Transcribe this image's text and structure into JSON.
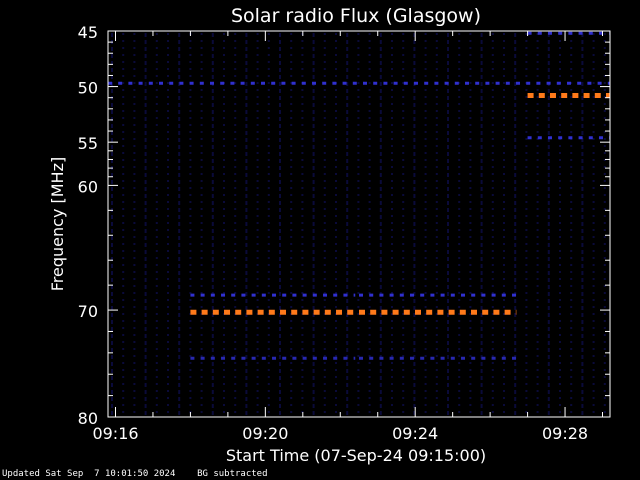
{
  "chart_data": {
    "type": "heatmap",
    "title": "Solar radio Flux (Glasgow)",
    "ylabel": "Frequency [MHz]",
    "xlabel": "Start Time (07-Sep-24 09:15:00)",
    "x_ticks": [
      "09:16",
      "09:20",
      "09:24",
      "09:28"
    ],
    "x_tick_minutes": [
      1,
      5,
      9,
      13
    ],
    "xlim_minutes": [
      0.8,
      14.2
    ],
    "y_ticks": [
      45,
      50,
      55,
      60,
      70,
      80
    ],
    "ylim": [
      45,
      80
    ],
    "y_scale": "nonlinear (compressed toward high frequency)",
    "y_axis_mapping": [
      [
        45,
        0
      ],
      [
        50,
        0.144
      ],
      [
        55,
        0.288
      ],
      [
        60,
        0.4
      ],
      [
        70,
        0.723
      ],
      [
        80,
        1
      ]
    ],
    "background": "#000000",
    "signal_bands": [
      {
        "freq_mhz": 49.7,
        "start_min": 0.8,
        "end_min": 14.2,
        "color": "#3030d0",
        "strength": "low"
      },
      {
        "freq_mhz": 70.2,
        "start_min": 3.0,
        "end_min": 7.4,
        "color": "#ff7a1a",
        "strength": "high"
      },
      {
        "freq_mhz": 70.2,
        "start_min": 7.5,
        "end_min": 11.7,
        "color": "#ff7a1a",
        "strength": "high"
      },
      {
        "freq_mhz": 68.8,
        "start_min": 3.0,
        "end_min": 7.4,
        "color": "#3030d0",
        "strength": "low"
      },
      {
        "freq_mhz": 68.8,
        "start_min": 7.5,
        "end_min": 11.7,
        "color": "#3030d0",
        "strength": "low"
      },
      {
        "freq_mhz": 74.5,
        "start_min": 3.0,
        "end_min": 7.4,
        "color": "#2828b0",
        "strength": "low"
      },
      {
        "freq_mhz": 74.5,
        "start_min": 7.5,
        "end_min": 11.7,
        "color": "#2828b0",
        "strength": "low"
      },
      {
        "freq_mhz": 50.8,
        "start_min": 12.0,
        "end_min": 14.2,
        "color": "#ff7a1a",
        "strength": "high"
      },
      {
        "freq_mhz": 54.6,
        "start_min": 12.0,
        "end_min": 14.2,
        "color": "#3030d0",
        "strength": "low"
      },
      {
        "freq_mhz": 45.2,
        "start_min": 12.0,
        "end_min": 14.2,
        "color": "#3030d0",
        "strength": "low"
      }
    ],
    "colors": {
      "axis": "#ffffff",
      "high": "#ff7a1a",
      "low": "#3030d0",
      "noise": "#0a0a3a"
    }
  },
  "footer": {
    "updated": "Updated Sat Sep  7 10:01:50 2024",
    "note": "BG subtracted"
  }
}
